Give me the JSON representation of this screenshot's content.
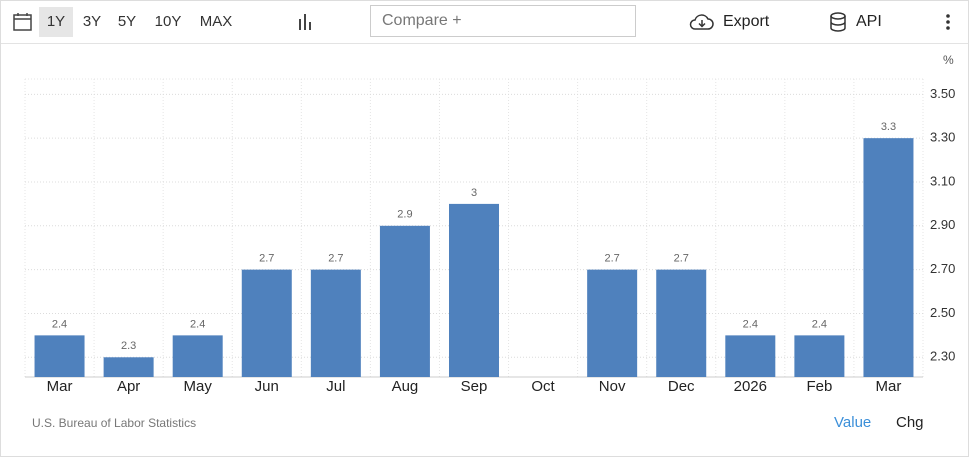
{
  "toolbar": {
    "ranges": [
      "1Y",
      "3Y",
      "5Y",
      "10Y",
      "MAX"
    ],
    "compare": "Compare +",
    "export": "Export",
    "api": "API"
  },
  "chart_data": {
    "type": "bar",
    "y_unit": "%",
    "categories": [
      "Mar",
      "Apr",
      "May",
      "Jun",
      "Jul",
      "Aug",
      "Sep",
      "Oct",
      "Nov",
      "Dec",
      "2026",
      "Feb",
      "Mar"
    ],
    "values": [
      2.4,
      2.3,
      2.4,
      2.7,
      2.7,
      2.9,
      3,
      null,
      2.7,
      2.7,
      2.4,
      2.4,
      3.3
    ],
    "color": "#4f81bd",
    "ylim": [
      2.21,
      3.57
    ],
    "yticks": [
      {
        "value": 2.3,
        "label": "2.30"
      },
      {
        "value": 2.5,
        "label": "2.50"
      },
      {
        "value": 2.7,
        "label": "2.70"
      },
      {
        "value": 2.9,
        "label": "2.90"
      },
      {
        "value": 3.1,
        "label": "3.10"
      },
      {
        "value": 3.3,
        "label": "3.30"
      },
      {
        "value": 3.5,
        "label": "3.50"
      }
    ],
    "grid": true
  },
  "footer": {
    "source": "U.S. Bureau of Labor Statistics",
    "toggles": [
      "Value",
      "Chg"
    ]
  }
}
